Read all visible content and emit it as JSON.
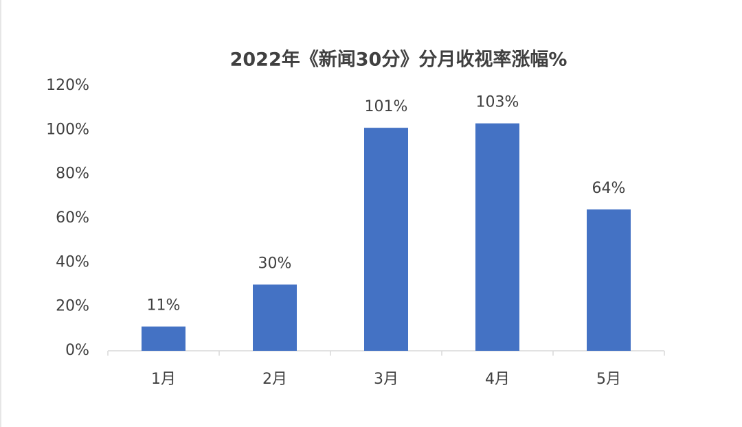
{
  "chart_data": {
    "type": "bar",
    "title": "2022年《新闻30分》分月收视率涨幅%",
    "categories": [
      "1月",
      "2月",
      "3月",
      "4月",
      "5月"
    ],
    "values": [
      11,
      30,
      101,
      103,
      64
    ],
    "value_labels": [
      "11%",
      "30%",
      "101%",
      "103%",
      "64%"
    ],
    "color": "#4472c4",
    "ylim": [
      0,
      120
    ],
    "yticks": [
      {
        "value": 0,
        "label": "0%"
      },
      {
        "value": 20,
        "label": "20%"
      },
      {
        "value": 40,
        "label": "40%"
      },
      {
        "value": 60,
        "label": "60%"
      },
      {
        "value": 80,
        "label": "80%"
      },
      {
        "value": 100,
        "label": "100%"
      },
      {
        "value": 120,
        "label": "120%"
      }
    ],
    "grid": false
  }
}
